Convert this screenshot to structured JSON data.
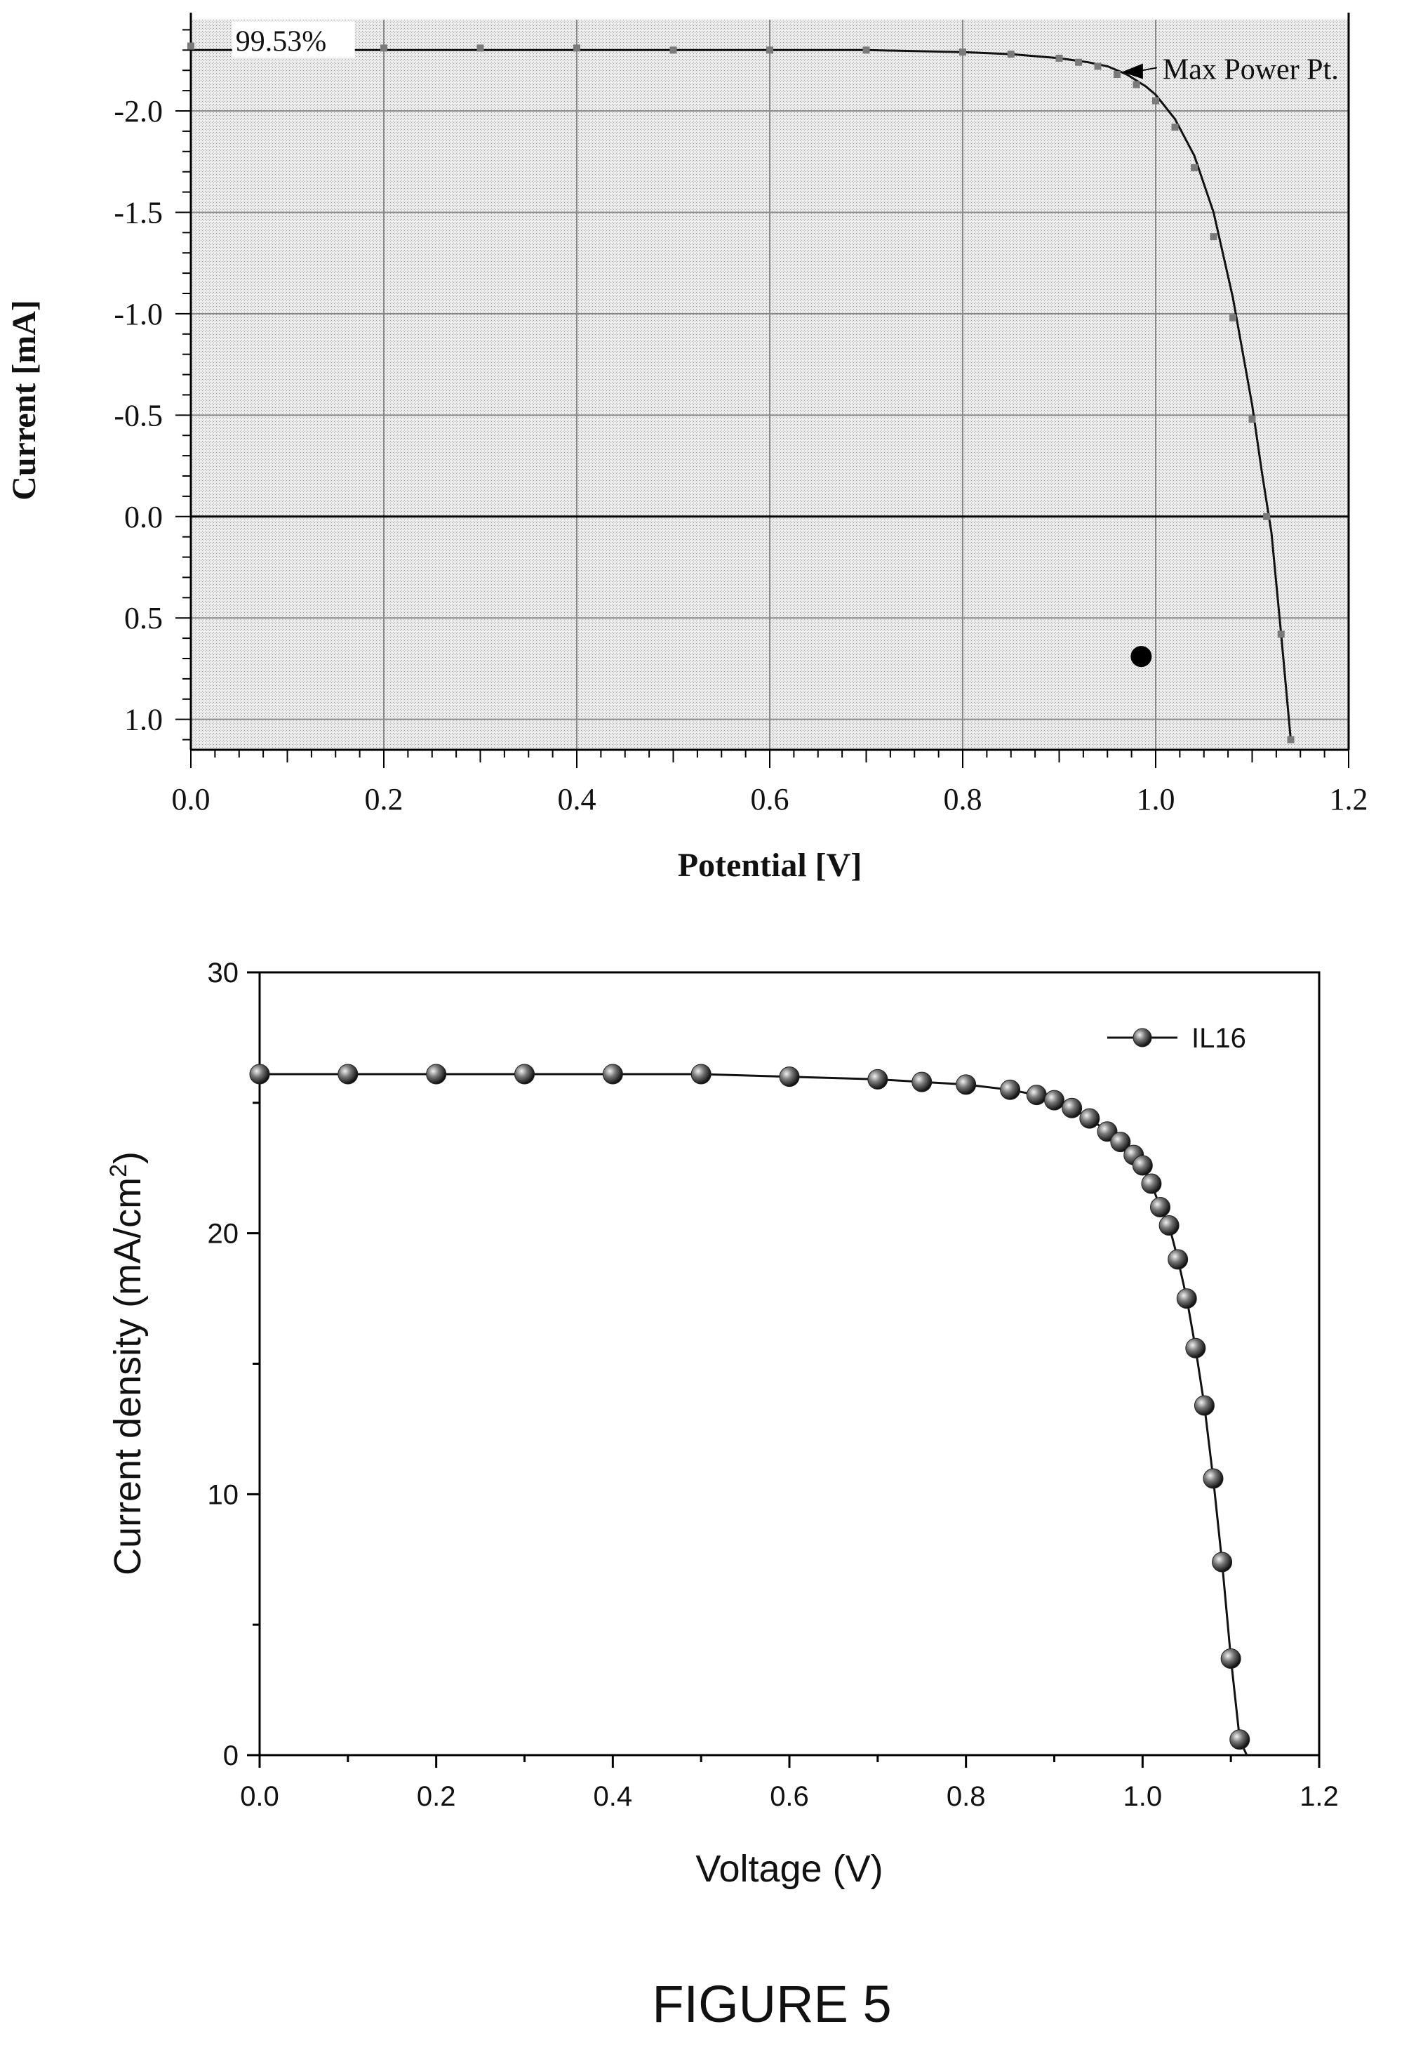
{
  "figure_label": "FIGURE 5",
  "chart_data": [
    {
      "type": "line",
      "xlabel": "Potential [V]",
      "ylabel": "Current [mA]",
      "xlim": [
        0.0,
        1.2
      ],
      "ylim": [
        1.15,
        -2.45
      ],
      "y_axis_reversed": true,
      "grid": true,
      "background": "stippled gray",
      "x_ticks": [
        "0.0",
        "0.2",
        "0.4",
        "0.6",
        "0.8",
        "1.0",
        "1.2"
      ],
      "x_tick_values": [
        0.0,
        0.2,
        0.4,
        0.6,
        0.8,
        1.0,
        1.2
      ],
      "y_ticks": [
        "-2.0",
        "-1.5",
        "-1.0",
        "-0.5",
        "0.0",
        "0.5",
        "1.0"
      ],
      "y_tick_values": [
        -2.0,
        -1.5,
        -1.0,
        -0.5,
        0.0,
        0.5,
        1.0
      ],
      "annotations": [
        {
          "text": "99.53%",
          "x": 0.05,
          "y": -2.31
        },
        {
          "text": "Max Power Pt.",
          "x": 0.965,
          "y": -2.22
        }
      ],
      "reference_line": {
        "y": 0.0
      },
      "marker_point": {
        "x": 0.985,
        "y": 0.69
      },
      "series": [
        {
          "style": "solid line (fit)",
          "x": [
            0.0,
            0.2,
            0.4,
            0.6,
            0.7,
            0.8,
            0.85,
            0.9,
            0.93,
            0.95,
            0.97,
            0.99,
            1.0,
            1.02,
            1.04,
            1.06,
            1.08,
            1.1,
            1.11,
            1.12,
            1.13,
            1.14
          ],
          "y": [
            -2.3,
            -2.3,
            -2.3,
            -2.3,
            -2.3,
            -2.29,
            -2.28,
            -2.26,
            -2.24,
            -2.22,
            -2.18,
            -2.12,
            -2.08,
            -1.96,
            -1.78,
            -1.5,
            -1.08,
            -0.55,
            -0.22,
            0.08,
            0.58,
            1.1
          ]
        },
        {
          "style": "square markers (measured)",
          "x": [
            0.0,
            0.1,
            0.2,
            0.3,
            0.4,
            0.5,
            0.6,
            0.7,
            0.8,
            0.85,
            0.9,
            0.92,
            0.94,
            0.96,
            0.98,
            1.0,
            1.02,
            1.04,
            1.06,
            1.08,
            1.1,
            1.115,
            1.13,
            1.14
          ],
          "y": [
            -2.32,
            -2.31,
            -2.31,
            -2.31,
            -2.31,
            -2.3,
            -2.3,
            -2.3,
            -2.29,
            -2.28,
            -2.26,
            -2.24,
            -2.22,
            -2.18,
            -2.13,
            -2.05,
            -1.92,
            -1.72,
            -1.38,
            -0.98,
            -0.48,
            0.0,
            0.58,
            1.1
          ]
        }
      ]
    },
    {
      "type": "line",
      "xlabel": "Voltage (V)",
      "ylabel": "Current density (mA/cm",
      "ylabel_superscript": "2",
      "ylabel_close": ")",
      "xlim": [
        0.0,
        1.2
      ],
      "ylim": [
        0,
        30
      ],
      "grid": false,
      "legend_placement": "top-right",
      "x_ticks": [
        "0.0",
        "0.2",
        "0.4",
        "0.6",
        "0.8",
        "1.0",
        "1.2"
      ],
      "x_tick_values": [
        0.0,
        0.2,
        0.4,
        0.6,
        0.8,
        1.0,
        1.2
      ],
      "y_ticks": [
        "0",
        "10",
        "20",
        "30"
      ],
      "y_tick_values": [
        0,
        10,
        20,
        30
      ],
      "series": [
        {
          "name": "IL16",
          "marker": "sphere",
          "x": [
            0.0,
            0.1,
            0.2,
            0.3,
            0.4,
            0.5,
            0.6,
            0.7,
            0.75,
            0.8,
            0.85,
            0.88,
            0.9,
            0.92,
            0.94,
            0.96,
            0.975,
            0.99,
            1.0,
            1.01,
            1.02,
            1.03,
            1.04,
            1.05,
            1.06,
            1.07,
            1.08,
            1.09,
            1.1,
            1.11,
            1.118
          ],
          "y": [
            26.1,
            26.1,
            26.1,
            26.1,
            26.1,
            26.1,
            26.0,
            25.9,
            25.8,
            25.7,
            25.5,
            25.3,
            25.1,
            24.8,
            24.4,
            23.9,
            23.5,
            23.0,
            22.6,
            21.9,
            21.0,
            20.3,
            19.0,
            17.5,
            15.6,
            13.4,
            10.6,
            7.4,
            3.7,
            0.6,
            0.0
          ]
        }
      ]
    }
  ]
}
